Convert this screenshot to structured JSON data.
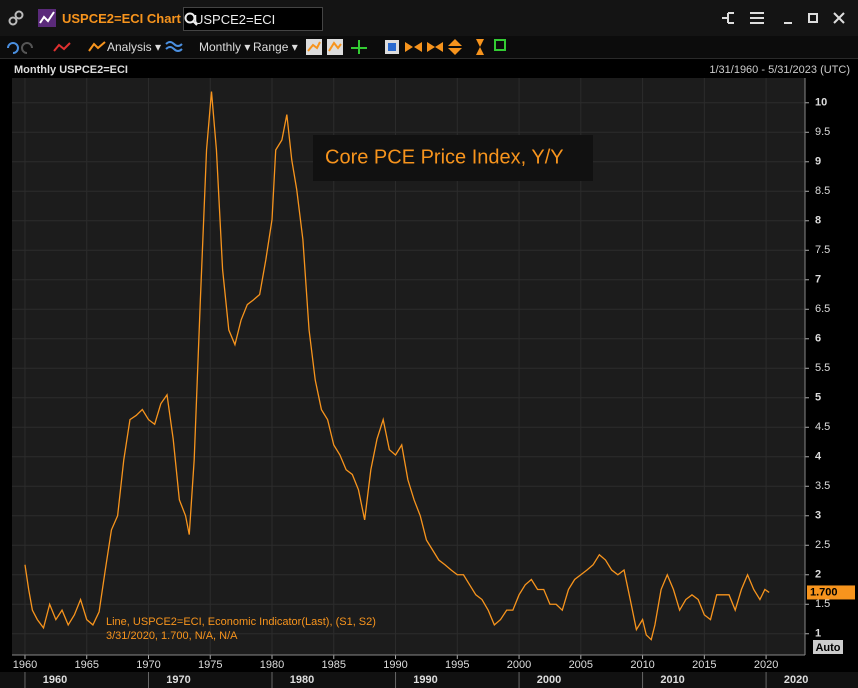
{
  "window": {
    "title": "USPCE2=ECI Chart",
    "search": "USPCE2=ECI"
  },
  "toolbar": {
    "analysis": "Analysis ▾",
    "monthly": "Monthly ▾",
    "range": "Range ▾"
  },
  "chart_data": {
    "type": "line",
    "title": "Monthly USPCE2=ECI",
    "subtitle": "1/31/1960 - 5/31/2023 (UTC)",
    "annotation": "Core PCE Price Index, Y/Y",
    "legend_lines": [
      "Line, USPCE2=ECI, Economic Indicator(Last), (S1, S2)",
      "3/31/2020, 1.700, N/A, N/A"
    ],
    "auto_label": "Auto",
    "last_value": {
      "value": 1.7,
      "label": "1.700"
    },
    "xlim": [
      1958.95,
      2023.15
    ],
    "xticks": [
      1960,
      1965,
      1970,
      1975,
      1980,
      1985,
      1990,
      1995,
      2000,
      2005,
      2010,
      2015,
      2020
    ],
    "decade_labels": [
      1960,
      1970,
      1980,
      1990,
      2000,
      2010,
      2020
    ],
    "ylim": [
      0.64,
      10.42
    ],
    "yticks": [
      1,
      1.5,
      2,
      2.5,
      3,
      3.5,
      4,
      4.5,
      5,
      5.5,
      6,
      6.5,
      7,
      7.5,
      8,
      8.5,
      9,
      9.5,
      10
    ],
    "grid": true,
    "x": [
      1960.0,
      1960.3,
      1960.6,
      1961,
      1961.5,
      1962,
      1962.5,
      1963,
      1963.5,
      1964,
      1964.5,
      1965,
      1965.5,
      1966,
      1966.5,
      1967,
      1967.5,
      1968,
      1968.5,
      1969,
      1969.5,
      1970,
      1970.5,
      1971,
      1971.5,
      1972,
      1972.5,
      1973,
      1973.3,
      1973.7,
      1974.2,
      1974.7,
      1975.1,
      1975.5,
      1976,
      1976.5,
      1977,
      1977.5,
      1978,
      1978.5,
      1979,
      1979.5,
      1980,
      1980.3,
      1980.8,
      1981.2,
      1981.6,
      1982,
      1982.5,
      1983,
      1983.5,
      1984,
      1984.5,
      1985,
      1985.5,
      1986,
      1986.5,
      1987,
      1987.5,
      1988,
      1988.5,
      1989,
      1989.5,
      1990,
      1990.5,
      1991,
      1991.5,
      1992,
      1992.5,
      1993,
      1993.5,
      1994,
      1994.5,
      1995,
      1995.5,
      1996,
      1996.5,
      1997,
      1997.5,
      1998,
      1998.5,
      1999,
      1999.5,
      2000,
      2000.5,
      2001,
      2001.5,
      2002,
      2002.5,
      2003,
      2003.5,
      2004,
      2004.5,
      2005,
      2005.5,
      2006,
      2006.5,
      2007,
      2007.5,
      2008,
      2008.5,
      2009,
      2009.5,
      2010,
      2010.3,
      2010.7,
      2011,
      2011.5,
      2012,
      2012.5,
      2013,
      2013.5,
      2014,
      2014.5,
      2015,
      2015.5,
      2016,
      2016.5,
      2017,
      2017.5,
      2018,
      2018.5,
      2019,
      2019.5,
      2019.9,
      2020.25
    ],
    "series": [
      {
        "name": "USPCE2=ECI",
        "color": "#f7941d",
        "values": [
          2.17,
          1.75,
          1.4,
          1.24,
          1.1,
          1.5,
          1.24,
          1.4,
          1.15,
          1.32,
          1.58,
          1.24,
          1.15,
          1.37,
          2.08,
          2.76,
          3.0,
          3.95,
          4.63,
          4.7,
          4.8,
          4.63,
          4.55,
          4.9,
          5.05,
          4.3,
          3.27,
          3.0,
          2.68,
          3.95,
          6.66,
          9.2,
          10.19,
          9.2,
          7.17,
          6.15,
          5.9,
          6.32,
          6.58,
          6.66,
          6.75,
          7.34,
          8.02,
          9.2,
          9.37,
          9.8,
          9.03,
          8.53,
          7.68,
          6.15,
          5.3,
          4.8,
          4.63,
          4.2,
          4.03,
          3.78,
          3.7,
          3.44,
          2.93,
          3.78,
          4.3,
          4.63,
          4.12,
          4.03,
          4.2,
          3.61,
          3.27,
          3.0,
          2.59,
          2.42,
          2.25,
          2.17,
          2.08,
          2.0,
          2.0,
          1.83,
          1.66,
          1.58,
          1.4,
          1.15,
          1.24,
          1.4,
          1.4,
          1.66,
          1.83,
          1.92,
          1.75,
          1.75,
          1.5,
          1.5,
          1.4,
          1.75,
          1.92,
          2.0,
          2.08,
          2.17,
          2.34,
          2.25,
          2.08,
          2.0,
          2.08,
          1.58,
          1.07,
          1.24,
          0.98,
          0.9,
          1.15,
          1.75,
          2.0,
          1.75,
          1.4,
          1.58,
          1.66,
          1.58,
          1.32,
          1.24,
          1.66,
          1.66,
          1.66,
          1.4,
          1.75,
          2.0,
          1.75,
          1.58,
          1.75,
          1.7
        ]
      }
    ]
  }
}
